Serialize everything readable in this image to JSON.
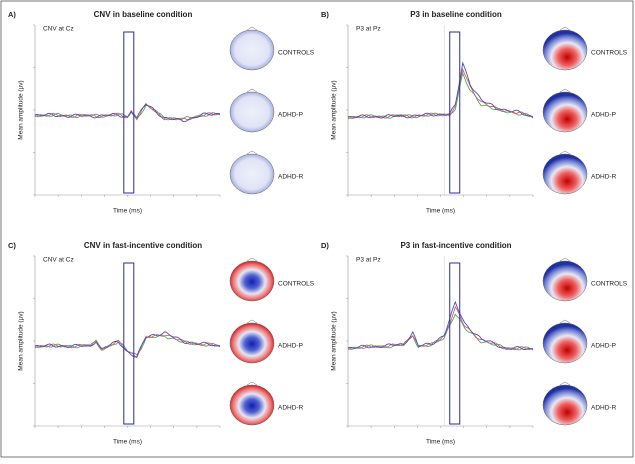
{
  "panels": [
    {
      "label": "A)",
      "title": "CNV in baseline condition",
      "channel": "CNV at Cz",
      "y_label": "Mean amplitude (µv)",
      "x_label": "Time (ms)",
      "groups": [
        "CONTROLS",
        "ADHD-P",
        "ADHD-R"
      ]
    },
    {
      "label": "B)",
      "title": "P3 in baseline condition",
      "channel": "P3 at Pz",
      "y_label": "Mean amplitude (µv)",
      "x_label": "Time (ms)",
      "groups": [
        "CONTROLS",
        "ADHD-P",
        "ADHD-R"
      ]
    },
    {
      "label": "C)",
      "title": "CNV in fast-incentive condition",
      "channel": "CNV at Cz",
      "y_label": "Mean amplitude (µv)",
      "x_label": "Time (ms)",
      "groups": [
        "CONTROLS",
        "ADHD-P",
        "ADHD-R"
      ]
    },
    {
      "label": "D)",
      "title": "P3 in fast-incentive condition",
      "channel": "P3 at Pz",
      "y_label": "Mean amplitude (µv)",
      "x_label": "Time (ms)",
      "groups": [
        "CONTROLS",
        "ADHD-P",
        "ADHD-R"
      ]
    }
  ]
}
